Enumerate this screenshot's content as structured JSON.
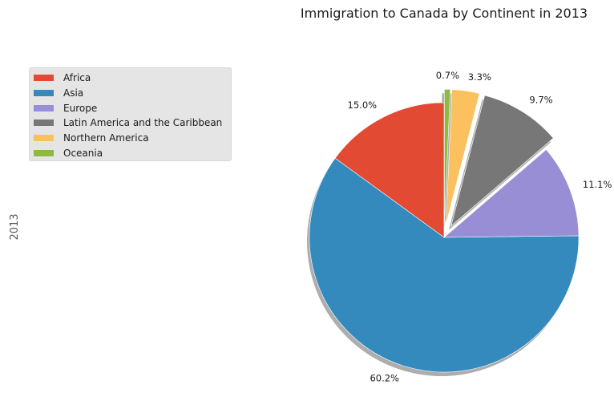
{
  "chart_data": {
    "type": "pie",
    "title": "Immigration to Canada by Continent in 2013",
    "ylabel": "2013",
    "categories": [
      "Africa",
      "Asia",
      "Europe",
      "Latin America and the Caribbean",
      "Northern America",
      "Oceania"
    ],
    "values": [
      15.0,
      60.2,
      11.1,
      9.7,
      3.3,
      0.7
    ],
    "labels": [
      "15.0%",
      "60.2%",
      "11.1%",
      "9.7%",
      "3.3%",
      "0.7%"
    ],
    "colors": [
      "#e24a33",
      "#348abd",
      "#988ed5",
      "#777777",
      "#fbc15e",
      "#8eba42"
    ],
    "explode": [
      0,
      0,
      0,
      0.1,
      0.1,
      0.1
    ],
    "startangle": 90,
    "shadow": true,
    "legend_position": "upper-left"
  }
}
